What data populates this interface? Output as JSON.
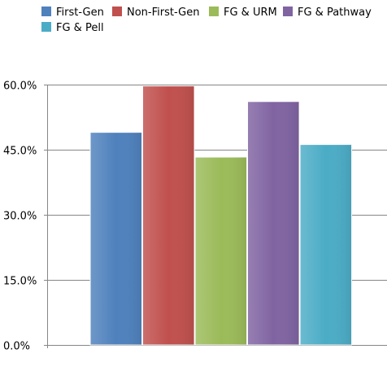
{
  "chart_data": {
    "type": "bar",
    "categories": [
      "First-Gen",
      "Non-First-Gen",
      "FG & URM",
      "FG & Pathway",
      "FG & Pell"
    ],
    "values": [
      49.0,
      59.7,
      43.3,
      56.1,
      46.2
    ],
    "ylim": [
      0,
      60
    ],
    "y_ticks": [
      "0.0%",
      "15.0%",
      "30.0%",
      "45.0%",
      "60.0%"
    ],
    "y_tick_values": [
      0,
      15,
      30,
      45,
      60
    ],
    "grid": true,
    "legend_position": "top",
    "colors": [
      "#4F81BD",
      "#C0504D",
      "#9BBB59",
      "#8064A2",
      "#4BACC6"
    ],
    "legend": [
      {
        "label": "First-Gen",
        "color": "#4F81BD"
      },
      {
        "label": "Non-First-Gen",
        "color": "#C0504D"
      },
      {
        "label": "FG & URM",
        "color": "#9BBB59"
      },
      {
        "label": "FG & Pathway",
        "color": "#8064A2"
      },
      {
        "label": "FG & Pell",
        "color": "#4BACC6"
      }
    ]
  }
}
